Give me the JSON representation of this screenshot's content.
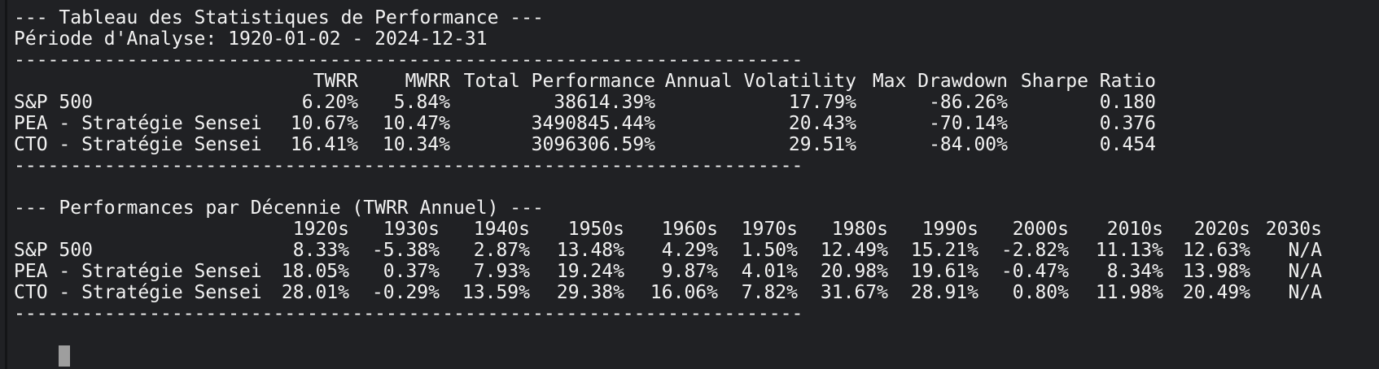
{
  "terminal": {
    "colors": {
      "background": "#202124",
      "text": "#f2f2f2",
      "cursor": "#9e9e9e"
    },
    "stats_section": {
      "title": "--- Tableau des Statistiques de Performance ---",
      "period_label": "Période d'Analyse: 1920-01-02 - 2024-12-31",
      "divider": "----------------------------------------------------------------------",
      "table": {
        "columns": [
          "TWRR",
          "MWRR",
          "Total Performance",
          "Annual Volatility",
          "Max Drawdown",
          "Sharpe Ratio"
        ],
        "rows": [
          {
            "label": "S&P 500",
            "values": [
              "6.20%",
              "5.84%",
              "38614.39%",
              "17.79%",
              "-86.26%",
              "0.180"
            ]
          },
          {
            "label": "PEA - Stratégie Sensei",
            "values": [
              "10.67%",
              "10.47%",
              "3490845.44%",
              "20.43%",
              "-70.14%",
              "0.376"
            ]
          },
          {
            "label": "CTO - Stratégie Sensei",
            "values": [
              "16.41%",
              "10.34%",
              "3096306.59%",
              "29.51%",
              "-84.00%",
              "0.454"
            ]
          }
        ]
      }
    },
    "decades_section": {
      "title": "--- Performances par Décennie (TWRR Annuel) ---",
      "divider": "----------------------------------------------------------------------",
      "table": {
        "columns": [
          "1920s",
          "1930s",
          "1940s",
          "1950s",
          "1960s",
          "1970s",
          "1980s",
          "1990s",
          "2000s",
          "2010s",
          "2020s",
          "2030s"
        ],
        "rows": [
          {
            "label": "S&P 500",
            "values": [
              "8.33%",
              "-5.38%",
              "2.87%",
              "13.48%",
              "4.29%",
              "1.50%",
              "12.49%",
              "15.21%",
              "-2.82%",
              "11.13%",
              "12.63%",
              "N/A"
            ]
          },
          {
            "label": "PEA - Stratégie Sensei",
            "values": [
              "18.05%",
              "0.37%",
              "7.93%",
              "19.24%",
              "9.87%",
              "4.01%",
              "20.98%",
              "19.61%",
              "-0.47%",
              "8.34%",
              "13.98%",
              "N/A"
            ]
          },
          {
            "label": "CTO - Stratégie Sensei",
            "values": [
              "28.01%",
              "-0.29%",
              "13.59%",
              "29.38%",
              "16.06%",
              "7.82%",
              "31.67%",
              "28.91%",
              "0.80%",
              "11.98%",
              "20.49%",
              "N/A"
            ]
          }
        ]
      }
    }
  }
}
